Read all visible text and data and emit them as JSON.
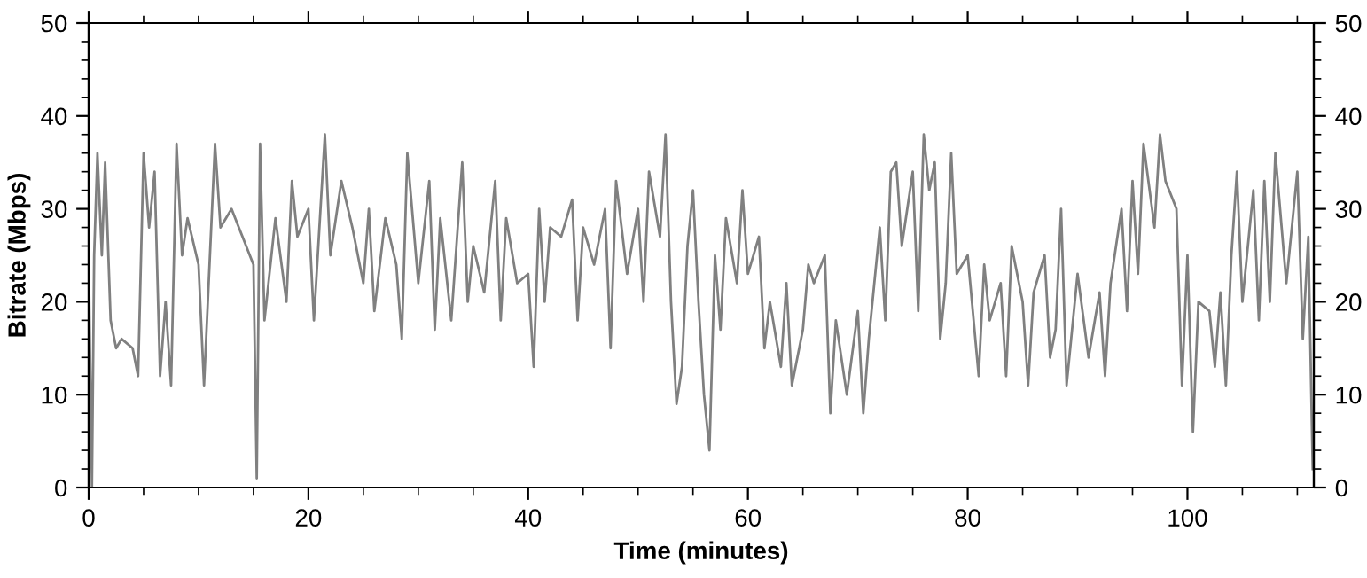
{
  "chart_data": {
    "type": "line",
    "xlabel": "Time (minutes)",
    "ylabel": "Bitrate (Mbps)",
    "x": [
      0,
      0.3,
      0.5,
      0.8,
      1.2,
      1.5,
      2,
      2.5,
      3,
      4,
      4.5,
      5,
      5.5,
      6,
      6.5,
      7,
      7.5,
      8,
      8.5,
      9,
      10,
      10.5,
      11,
      11.5,
      12,
      13,
      14,
      15,
      15.3,
      15.6,
      16,
      17,
      18,
      18.5,
      19,
      20,
      20.5,
      21,
      21.5,
      22,
      23,
      24,
      25,
      25.5,
      26,
      27,
      28,
      28.5,
      29,
      30,
      31,
      31.5,
      32,
      33,
      34,
      34.5,
      35,
      36,
      37,
      37.5,
      38,
      39,
      40,
      40.5,
      41,
      41.5,
      42,
      43,
      44,
      44.5,
      45,
      46,
      47,
      47.5,
      48,
      49,
      50,
      50.5,
      51,
      52,
      52.5,
      53,
      53.5,
      54,
      54.5,
      55,
      55.5,
      56,
      56.5,
      57,
      57.5,
      58,
      59,
      59.5,
      60,
      61,
      61.5,
      62,
      63,
      63.5,
      64,
      65,
      65.5,
      66,
      67,
      67.5,
      68,
      69,
      70,
      70.5,
      71,
      72,
      72.5,
      73,
      73.5,
      74,
      75,
      75.5,
      76,
      76.5,
      77,
      77.5,
      78,
      78.5,
      79,
      80,
      81,
      81.5,
      82,
      83,
      83.5,
      84,
      85,
      85.5,
      86,
      87,
      87.5,
      88,
      88.5,
      89,
      90,
      91,
      92,
      92.5,
      93,
      94,
      94.5,
      95,
      95.5,
      96,
      97,
      97.5,
      98,
      99,
      99.5,
      100,
      100.5,
      101,
      102,
      102.5,
      103,
      103.5,
      104,
      104.5,
      105,
      106,
      106.5,
      107,
      107.5,
      108,
      109,
      110,
      110.5,
      111,
      111.4
    ],
    "series": [
      {
        "color": "#808080",
        "values": [
          25,
          0,
          25,
          36,
          25,
          35,
          18,
          15,
          16,
          15,
          12,
          36,
          28,
          34,
          12,
          20,
          11,
          37,
          25,
          29,
          24,
          11,
          24,
          37,
          28,
          30,
          27,
          24,
          1,
          37,
          18,
          29,
          20,
          33,
          27,
          30,
          18,
          28,
          38,
          25,
          33,
          28,
          22,
          30,
          19,
          29,
          24,
          16,
          36,
          22,
          33,
          17,
          29,
          18,
          35,
          20,
          26,
          21,
          33,
          18,
          29,
          22,
          23,
          13,
          30,
          20,
          28,
          27,
          31,
          18,
          28,
          24,
          30,
          15,
          33,
          23,
          30,
          20,
          34,
          27,
          38,
          20,
          9,
          13,
          26,
          32,
          20,
          10,
          4,
          25,
          17,
          29,
          22,
          32,
          23,
          27,
          15,
          20,
          13,
          22,
          11,
          17,
          24,
          22,
          25,
          8,
          18,
          10,
          19,
          8,
          16,
          28,
          18,
          34,
          35,
          26,
          34,
          19,
          38,
          32,
          35,
          16,
          22,
          36,
          23,
          25,
          12,
          24,
          18,
          22,
          12,
          26,
          20,
          11,
          21,
          25,
          14,
          17,
          30,
          11,
          23,
          14,
          21,
          12,
          22,
          30,
          19,
          33,
          23,
          37,
          28,
          38,
          33,
          30,
          11,
          25,
          6,
          20,
          19,
          13,
          21,
          11,
          25,
          34,
          20,
          32,
          18,
          33,
          20,
          36,
          22,
          34,
          16,
          27,
          2
        ]
      }
    ],
    "xlim": [
      0,
      111.5
    ],
    "xticks": [
      0,
      20,
      40,
      60,
      80,
      100
    ],
    "ylim": [
      0,
      50
    ],
    "yticks": [
      0,
      10,
      20,
      30,
      40,
      50
    ],
    "y2lim": [
      0,
      50
    ],
    "y2ticks": [
      0,
      10,
      20,
      30,
      40,
      50
    ],
    "grid": false,
    "marker": "none",
    "line_style": "solid"
  }
}
